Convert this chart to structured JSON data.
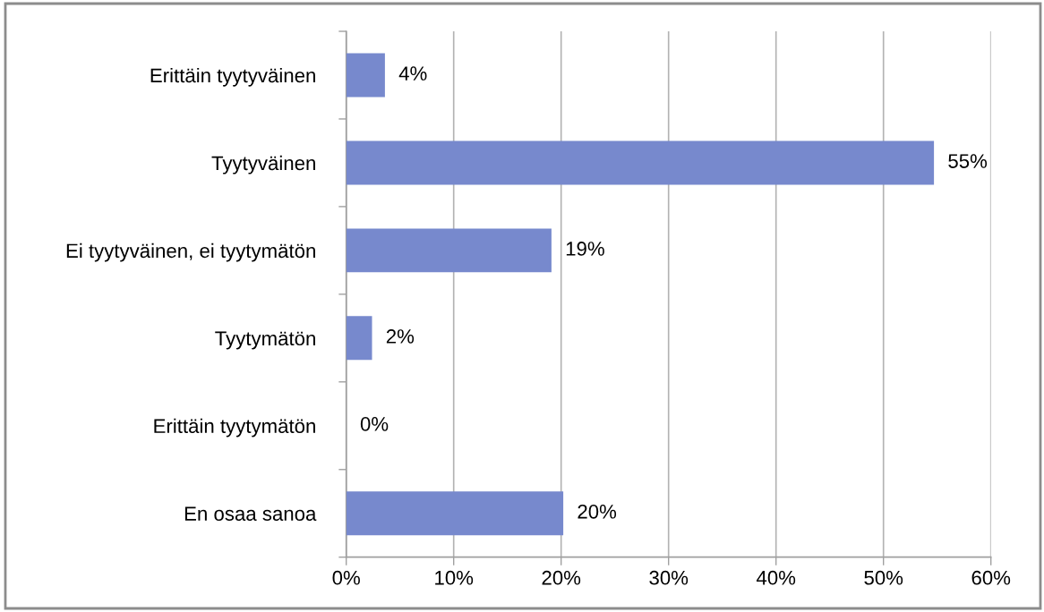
{
  "chart_data": {
    "type": "bar",
    "orientation": "horizontal",
    "categories": [
      "Erittäin tyytyväinen",
      "Tyytyväinen",
      "Ei tyytyväinen, ei tyytymätön",
      "Tyytymätön",
      "Erittäin tyytymätön",
      "En osaa sanoa"
    ],
    "values": [
      3.6,
      54.7,
      19.1,
      2.4,
      0,
      20.2
    ],
    "value_labels": [
      "4%",
      "55%",
      "19%",
      "2%",
      "0%",
      "20%"
    ],
    "color": "#7789cd",
    "xlim": [
      0,
      60
    ],
    "xticks": [
      {
        "value": 0,
        "label": "0%"
      },
      {
        "value": 10,
        "label": "10%"
      },
      {
        "value": 20,
        "label": "20%"
      },
      {
        "value": 30,
        "label": "30%"
      },
      {
        "value": 40,
        "label": "40%"
      },
      {
        "value": 50,
        "label": "50%"
      },
      {
        "value": 60,
        "label": "60%"
      }
    ],
    "grid": "x"
  }
}
